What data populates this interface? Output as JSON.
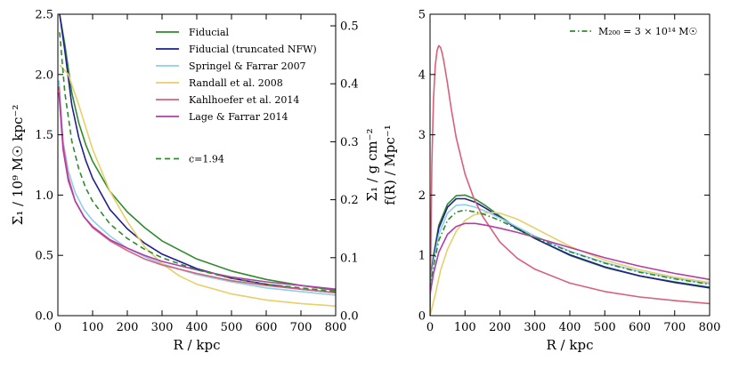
{
  "chart_data": [
    {
      "type": "line",
      "xlabel": "R / kpc",
      "ylabel": "Σ₁ / 10⁹ M☉ kpc⁻²",
      "ylabel_right": "Σ₁ / g cm⁻²",
      "xlim": [
        0,
        800
      ],
      "ylim": [
        0,
        2.5
      ],
      "ylim_right": [
        0,
        0.52
      ],
      "xticks": [
        "0",
        "100",
        "200",
        "300",
        "400",
        "500",
        "600",
        "700",
        "800"
      ],
      "yticks": [
        "0.0",
        "0.5",
        "1.0",
        "1.5",
        "2.0",
        "2.5"
      ],
      "yticks_right": [
        "0.0",
        "0.1",
        "0.2",
        "0.3",
        "0.4",
        "0.5"
      ],
      "grid": false,
      "legend_position": "top-right",
      "series": [
        {
          "name": "Fiducial",
          "color": "#2e8b2e",
          "style": "solid",
          "x": [
            5,
            20,
            40,
            60,
            80,
            100,
            150,
            200,
            250,
            300,
            400,
            500,
            600,
            700,
            800
          ],
          "y": [
            2.5,
            2.25,
            1.85,
            1.6,
            1.42,
            1.28,
            1.03,
            0.86,
            0.73,
            0.62,
            0.47,
            0.37,
            0.3,
            0.25,
            0.21
          ]
        },
        {
          "name": "Fiducial (truncated NFW)",
          "color": "#1f1f8f",
          "style": "solid",
          "x": [
            5,
            20,
            40,
            60,
            80,
            100,
            150,
            200,
            250,
            300,
            400,
            500,
            600,
            700,
            800
          ],
          "y": [
            2.5,
            2.2,
            1.75,
            1.48,
            1.29,
            1.14,
            0.88,
            0.72,
            0.6,
            0.51,
            0.39,
            0.31,
            0.26,
            0.22,
            0.19
          ]
        },
        {
          "name": "Springel & Farrar 2007",
          "color": "#8ecfe8",
          "style": "solid",
          "x": [
            3,
            15,
            30,
            50,
            75,
            100,
            150,
            200,
            250,
            300,
            400,
            500,
            600,
            700,
            800
          ],
          "y": [
            1.95,
            1.45,
            1.2,
            1.02,
            0.88,
            0.79,
            0.66,
            0.56,
            0.49,
            0.43,
            0.34,
            0.28,
            0.23,
            0.2,
            0.17
          ]
        },
        {
          "name": "Randall et al. 2008",
          "color": "#e8cf6a",
          "style": "solid",
          "x": [
            5,
            30,
            60,
            100,
            150,
            200,
            250,
            300,
            350,
            400,
            500,
            600,
            700,
            800
          ],
          "y": [
            2.08,
            2.0,
            1.75,
            1.38,
            1.03,
            0.78,
            0.57,
            0.43,
            0.33,
            0.26,
            0.18,
            0.13,
            0.1,
            0.08
          ]
        },
        {
          "name": "Kahlhoefer et al. 2014",
          "color": "#d8607a",
          "style": "solid",
          "x": [
            3,
            15,
            30,
            50,
            75,
            100,
            150,
            200,
            250,
            300,
            400,
            500,
            600,
            700,
            800
          ],
          "y": [
            1.9,
            1.42,
            1.15,
            0.95,
            0.82,
            0.73,
            0.62,
            0.54,
            0.47,
            0.42,
            0.35,
            0.29,
            0.25,
            0.22,
            0.19
          ]
        },
        {
          "name": "Lage & Farrar 2014",
          "color": "#b43ca8",
          "style": "solid",
          "x": [
            3,
            15,
            30,
            50,
            75,
            100,
            150,
            200,
            250,
            300,
            400,
            500,
            600,
            700,
            800
          ],
          "y": [
            1.85,
            1.38,
            1.12,
            0.95,
            0.82,
            0.74,
            0.63,
            0.56,
            0.5,
            0.45,
            0.38,
            0.32,
            0.28,
            0.25,
            0.22
          ]
        },
        {
          "name": "c=1.94",
          "color": "#2e8b2e",
          "style": "dashed",
          "x": [
            5,
            20,
            40,
            60,
            80,
            100,
            150,
            200,
            250,
            300,
            400,
            500,
            600,
            700,
            800
          ],
          "y": [
            2.35,
            1.85,
            1.45,
            1.22,
            1.06,
            0.95,
            0.76,
            0.64,
            0.55,
            0.48,
            0.38,
            0.31,
            0.26,
            0.23,
            0.2
          ]
        }
      ]
    },
    {
      "type": "line",
      "xlabel": "R / kpc",
      "ylabel": "f(R) / Mpc⁻¹",
      "xlim": [
        0,
        800
      ],
      "ylim": [
        0,
        5
      ],
      "xticks": [
        "0",
        "100",
        "200",
        "300",
        "400",
        "500",
        "600",
        "700",
        "800"
      ],
      "yticks": [
        "0",
        "1",
        "2",
        "3",
        "4",
        "5"
      ],
      "grid": false,
      "legend_position": "top-right",
      "legend": {
        "name": "M₂₀₀ = 3 × 10¹⁴ M☉",
        "color": "#2e8b2e",
        "style": "dashdot"
      },
      "series": [
        {
          "name": "Fiducial",
          "color": "#2e8b2e",
          "style": "solid",
          "x": [
            0,
            10,
            25,
            50,
            75,
            100,
            130,
            160,
            200,
            250,
            300,
            400,
            500,
            600,
            700,
            800
          ],
          "y": [
            0.55,
            1.0,
            1.5,
            1.85,
            1.99,
            2.0,
            1.93,
            1.82,
            1.65,
            1.45,
            1.28,
            1.0,
            0.8,
            0.66,
            0.56,
            0.47
          ]
        },
        {
          "name": "Fiducial (truncated NFW)",
          "color": "#1f1f8f",
          "style": "solid",
          "x": [
            0,
            10,
            25,
            50,
            75,
            100,
            130,
            160,
            200,
            250,
            300,
            400,
            500,
            600,
            700,
            800
          ],
          "y": [
            0.5,
            0.95,
            1.45,
            1.8,
            1.94,
            1.94,
            1.88,
            1.78,
            1.63,
            1.44,
            1.28,
            1.01,
            0.81,
            0.66,
            0.55,
            0.46
          ]
        },
        {
          "name": "Springel & Farrar 2007",
          "color": "#8ecfe8",
          "style": "solid",
          "x": [
            0,
            10,
            25,
            50,
            75,
            100,
            130,
            160,
            200,
            250,
            300,
            400,
            500,
            600,
            700,
            800
          ],
          "y": [
            0.5,
            0.9,
            1.35,
            1.7,
            1.83,
            1.84,
            1.8,
            1.73,
            1.62,
            1.47,
            1.32,
            1.07,
            0.88,
            0.73,
            0.62,
            0.53
          ]
        },
        {
          "name": "Randall et al. 2008",
          "color": "#e8cf6a",
          "style": "solid",
          "x": [
            0,
            15,
            30,
            50,
            75,
            100,
            125,
            150,
            180,
            200,
            250,
            300,
            400,
            500,
            600,
            700,
            800
          ],
          "y": [
            0.0,
            0.35,
            0.75,
            1.1,
            1.4,
            1.58,
            1.67,
            1.7,
            1.71,
            1.7,
            1.6,
            1.45,
            1.15,
            0.92,
            0.76,
            0.64,
            0.55
          ]
        },
        {
          "name": "Kahlhoefer et al. 2014",
          "color": "#d8607a",
          "style": "solid",
          "x": [
            0,
            5,
            10,
            15,
            20,
            25,
            30,
            35,
            40,
            50,
            60,
            75,
            100,
            125,
            150,
            200,
            250,
            300,
            400,
            500,
            600,
            700,
            800
          ],
          "y": [
            0.0,
            2.5,
            3.6,
            4.15,
            4.4,
            4.48,
            4.45,
            4.35,
            4.2,
            3.85,
            3.45,
            2.95,
            2.35,
            1.95,
            1.65,
            1.22,
            0.95,
            0.77,
            0.54,
            0.4,
            0.31,
            0.25,
            0.2
          ]
        },
        {
          "name": "Lage & Farrar 2014",
          "color": "#b43ca8",
          "style": "solid",
          "x": [
            0,
            10,
            25,
            50,
            75,
            100,
            130,
            160,
            200,
            250,
            300,
            400,
            500,
            600,
            700,
            800
          ],
          "y": [
            0.35,
            0.7,
            1.05,
            1.35,
            1.48,
            1.53,
            1.53,
            1.5,
            1.45,
            1.38,
            1.3,
            1.13,
            0.96,
            0.82,
            0.7,
            0.6
          ]
        },
        {
          "name": "M₂₀₀ = 3 × 10¹⁴ M☉",
          "color": "#2e8b2e",
          "style": "dashdot",
          "x": [
            0,
            10,
            25,
            50,
            75,
            100,
            130,
            160,
            200,
            250,
            300,
            400,
            500,
            600,
            700,
            800
          ],
          "y": [
            0.45,
            0.82,
            1.25,
            1.58,
            1.72,
            1.75,
            1.72,
            1.67,
            1.58,
            1.43,
            1.3,
            1.06,
            0.87,
            0.72,
            0.61,
            0.52
          ]
        }
      ]
    }
  ]
}
